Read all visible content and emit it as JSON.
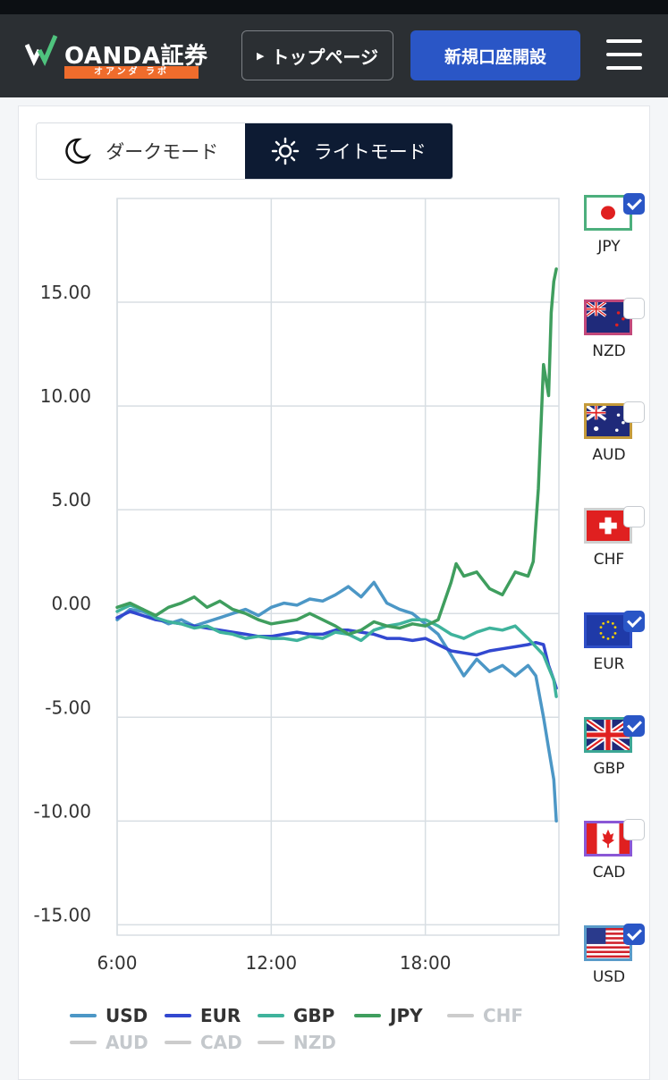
{
  "header": {
    "logo_text": "OANDA証券",
    "logo_sub": "オアンダ ラボ",
    "top_button": "トップページ",
    "new_account_button": "新規口座開設"
  },
  "mode_toggle": {
    "dark_label": "ダークモード",
    "light_label": "ライトモード",
    "selected": "light"
  },
  "currencies": [
    {
      "code": "JPY",
      "checked": true,
      "border": "#4caf7d"
    },
    {
      "code": "NZD",
      "checked": false,
      "border": "#c2487a"
    },
    {
      "code": "AUD",
      "checked": false,
      "border": "#c49a3a"
    },
    {
      "code": "CHF",
      "checked": false,
      "border": "#cfcfcf"
    },
    {
      "code": "EUR",
      "checked": true,
      "border": "#2f4fc7"
    },
    {
      "code": "GBP",
      "checked": true,
      "border": "#3ca795"
    },
    {
      "code": "CAD",
      "checked": false,
      "border": "#8a57d6"
    },
    {
      "code": "USD",
      "checked": true,
      "border": "#5a9bc9"
    }
  ],
  "legend": [
    {
      "name": "USD",
      "color": "#4c97c6",
      "active": true
    },
    {
      "name": "EUR",
      "color": "#3248d0",
      "active": true
    },
    {
      "name": "GBP",
      "color": "#3fb39c",
      "active": true
    },
    {
      "name": "JPY",
      "color": "#3f9e5e",
      "active": true
    },
    {
      "name": "CHF",
      "color": "#cccccc",
      "active": false
    },
    {
      "name": "AUD",
      "color": "#cccccc",
      "active": false
    },
    {
      "name": "CAD",
      "color": "#cccccc",
      "active": false
    },
    {
      "name": "NZD",
      "color": "#cccccc",
      "active": false
    }
  ],
  "chart_data": {
    "type": "line",
    "ylim": [
      -15.5,
      20
    ],
    "xlim": [
      6,
      23.2
    ],
    "yticks": [
      "15.00",
      "10.00",
      "5.00",
      "0.00",
      "-5.00",
      "-10.00",
      "-15.00"
    ],
    "ytick_values": [
      15,
      10,
      5,
      0,
      -5,
      -10,
      -15
    ],
    "xticks": [
      "6:00",
      "12:00",
      "18:00"
    ],
    "xtick_values": [
      6,
      12,
      18
    ],
    "grid": true,
    "series": [
      {
        "name": "USD",
        "color": "#4c97c6",
        "x": [
          6,
          6.5,
          7,
          7.5,
          8,
          8.5,
          9,
          9.5,
          10,
          10.5,
          11,
          11.5,
          12,
          12.5,
          13,
          13.5,
          14,
          14.5,
          15,
          15.5,
          16,
          16.5,
          17,
          17.5,
          18,
          18.5,
          19,
          19.5,
          20,
          20.5,
          21,
          21.5,
          22,
          22.3,
          22.6,
          22.8,
          23,
          23.1
        ],
        "y": [
          -0.3,
          0.2,
          0.1,
          -0.2,
          -0.5,
          -0.3,
          -0.6,
          -0.4,
          -0.2,
          0.0,
          0.2,
          -0.1,
          0.3,
          0.5,
          0.4,
          0.7,
          0.6,
          0.9,
          1.3,
          0.8,
          1.5,
          0.5,
          0.2,
          0.0,
          -0.5,
          -1.0,
          -2.0,
          -3.0,
          -2.2,
          -2.8,
          -2.5,
          -3.0,
          -2.5,
          -3.0,
          -5.0,
          -6.5,
          -8.0,
          -10.0
        ]
      },
      {
        "name": "EUR",
        "color": "#3248d0",
        "x": [
          6,
          6.5,
          7,
          7.5,
          8,
          8.5,
          9,
          9.5,
          10,
          10.5,
          11,
          11.5,
          12,
          12.5,
          13,
          13.5,
          14,
          14.5,
          15,
          15.5,
          16,
          16.5,
          17,
          17.5,
          18,
          18.5,
          19,
          19.5,
          20,
          20.5,
          21,
          21.5,
          22,
          22.3,
          22.6,
          22.8,
          23,
          23.1
        ],
        "y": [
          -0.2,
          0.1,
          -0.1,
          -0.3,
          -0.4,
          -0.5,
          -0.6,
          -0.7,
          -0.8,
          -0.9,
          -1.0,
          -1.1,
          -1.1,
          -1.0,
          -0.9,
          -1.0,
          -1.0,
          -0.8,
          -0.8,
          -0.9,
          -1.0,
          -1.2,
          -1.2,
          -1.3,
          -1.2,
          -1.5,
          -1.8,
          -1.9,
          -2.0,
          -1.8,
          -1.7,
          -1.6,
          -1.5,
          -1.4,
          -1.5,
          -2.5,
          -3.2,
          -3.6
        ]
      },
      {
        "name": "GBP",
        "color": "#3fb39c",
        "x": [
          6,
          6.5,
          7,
          7.5,
          8,
          8.5,
          9,
          9.5,
          10,
          10.5,
          11,
          11.5,
          12,
          12.5,
          13,
          13.5,
          14,
          14.5,
          15,
          15.5,
          16,
          16.5,
          17,
          17.5,
          18,
          18.5,
          19,
          19.5,
          20,
          20.5,
          21,
          21.5,
          22,
          22.3,
          22.6,
          22.8,
          23,
          23.1
        ],
        "y": [
          0.1,
          0.4,
          0.2,
          -0.2,
          -0.4,
          -0.5,
          -0.7,
          -0.6,
          -0.9,
          -1.0,
          -1.2,
          -1.1,
          -1.2,
          -1.2,
          -1.3,
          -1.1,
          -1.2,
          -0.9,
          -1.0,
          -1.3,
          -0.8,
          -0.6,
          -0.5,
          -0.3,
          -0.3,
          -0.6,
          -1.0,
          -1.2,
          -0.9,
          -0.7,
          -0.8,
          -0.6,
          -1.2,
          -1.6,
          -2.0,
          -2.6,
          -3.2,
          -4.0
        ]
      },
      {
        "name": "JPY",
        "color": "#3f9e5e",
        "x": [
          6,
          6.5,
          7,
          7.5,
          8,
          8.5,
          9,
          9.5,
          10,
          10.5,
          11,
          11.5,
          12,
          12.5,
          13,
          13.5,
          14,
          14.5,
          15,
          15.5,
          16,
          16.5,
          17,
          17.5,
          18,
          18.5,
          19,
          19.2,
          19.5,
          20,
          20.5,
          21,
          21.5,
          22,
          22.2,
          22.4,
          22.6,
          22.8,
          22.9,
          23.0,
          23.1
        ],
        "y": [
          0.3,
          0.5,
          0.2,
          -0.1,
          0.3,
          0.5,
          0.8,
          0.3,
          0.6,
          0.2,
          0.0,
          -0.3,
          -0.5,
          -0.4,
          -0.3,
          0.0,
          -0.3,
          -0.6,
          -1.0,
          -0.8,
          -0.4,
          -0.6,
          -0.7,
          -0.5,
          -0.6,
          -0.3,
          1.5,
          2.4,
          1.8,
          2.0,
          1.2,
          0.9,
          2.0,
          1.8,
          2.5,
          6.0,
          12.0,
          10.5,
          14.5,
          16.0,
          16.6
        ]
      }
    ]
  }
}
